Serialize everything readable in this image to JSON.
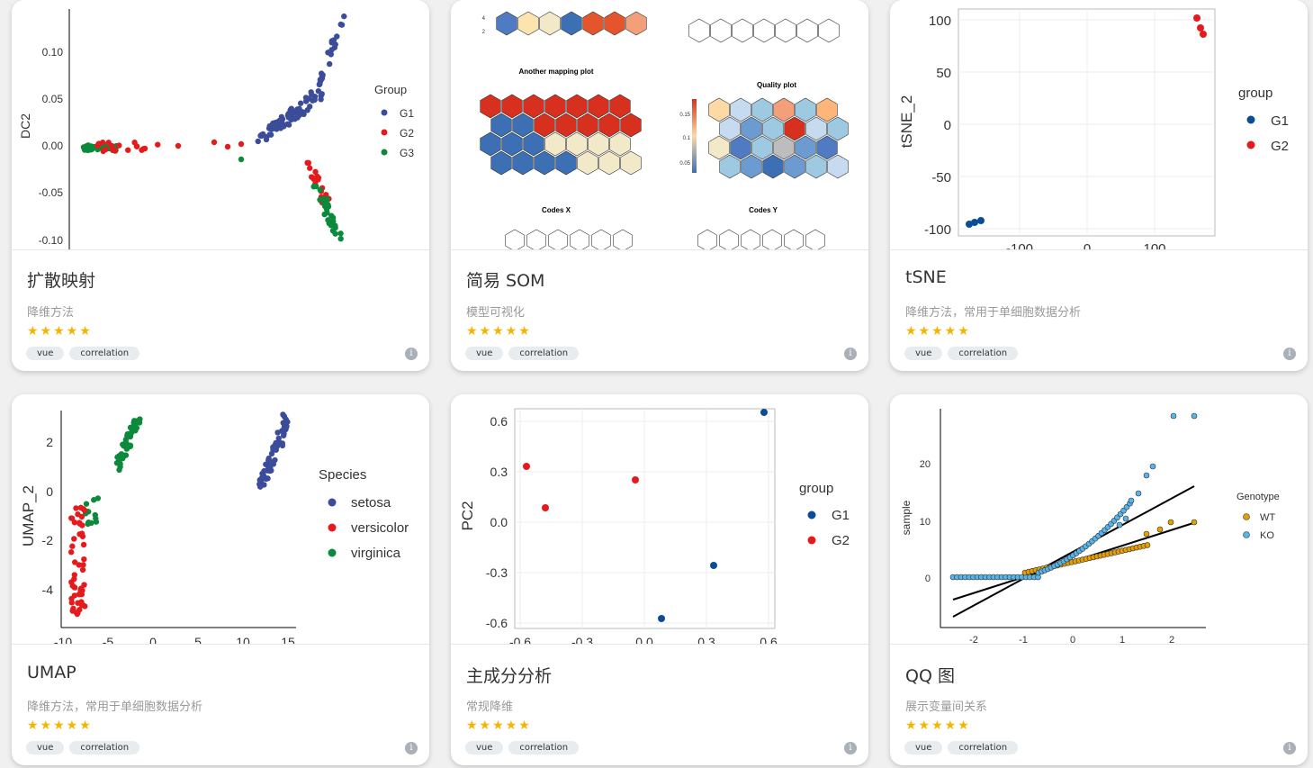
{
  "cards": [
    {
      "title": "扩散映射",
      "desc": "降维方法",
      "stars": "★★★★★",
      "tags": [
        "vue",
        "correlation"
      ],
      "info": "i",
      "plot": {
        "ylabel": "DC2",
        "yticks": [
          "0.10",
          "0.05",
          "0.00",
          "-0.05",
          "-0.10"
        ],
        "legend_title": "Group",
        "legend": [
          "G1",
          "G2",
          "G3"
        ]
      }
    },
    {
      "title": "简易 SOM",
      "desc": "模型可视化",
      "stars": "★★★★★",
      "tags": [
        "vue",
        "correlation"
      ],
      "info": "i",
      "plot": {
        "labels": [
          "Another mapping plot",
          "Quality plot",
          "Codes X",
          "Codes Y"
        ],
        "scale_ticks": [
          "0.15",
          "0.1",
          "0.05"
        ],
        "top_ticks": [
          "4",
          "2"
        ]
      }
    },
    {
      "title": "tSNE",
      "desc": "降维方法，常用于单细胞数据分析",
      "stars": "★★★★★",
      "tags": [
        "vue",
        "correlation"
      ],
      "info": "i",
      "plot": {
        "ylabel": "tSNE_2",
        "yticks": [
          "100",
          "50",
          "0",
          "-50",
          "-100"
        ],
        "xticks": [
          "-100",
          "0",
          "100"
        ],
        "legend_title": "group",
        "legend": [
          "G1",
          "G2"
        ]
      }
    },
    {
      "title": "UMAP",
      "desc": "降维方法，常用于单细胞数据分析",
      "stars": "★★★★★",
      "tags": [
        "vue",
        "correlation"
      ],
      "info": "i",
      "plot": {
        "ylabel": "UMAP_2",
        "yticks": [
          "2",
          "0",
          "-2",
          "-4"
        ],
        "xticks": [
          "-10",
          "-5",
          "0",
          "5",
          "10",
          "15"
        ],
        "legend_title": "Species",
        "legend": [
          "setosa",
          "versicolor",
          "virginica"
        ]
      }
    },
    {
      "title": "主成分分析",
      "desc": "常规降维",
      "stars": "★★★★★",
      "tags": [
        "vue",
        "correlation"
      ],
      "info": "i",
      "plot": {
        "ylabel": "PC2",
        "yticks": [
          "0.6",
          "0.3",
          "0.0",
          "-0.3",
          "-0.6"
        ],
        "xticks": [
          "-0.6",
          "-0.3",
          "0.0",
          "0.3",
          "0.6"
        ],
        "legend_title": "group",
        "legend": [
          "G1",
          "G2"
        ]
      }
    },
    {
      "title": "QQ 图",
      "desc": "展示变量间关系",
      "stars": "★★★★★",
      "tags": [
        "vue",
        "correlation"
      ],
      "info": "i",
      "plot": {
        "ylabel": "sample",
        "yticks": [
          "20",
          "10",
          "0"
        ],
        "xticks": [
          "-2",
          "-1",
          "0",
          "1",
          "2"
        ],
        "legend_title": "Genotype",
        "legend": [
          "WT",
          "KO"
        ]
      }
    }
  ],
  "colors": {
    "blue": "#3b4c9b",
    "red": "#e41a1c",
    "green": "#0a8a3a",
    "navy": "#0b4c99",
    "orange": "#e69f00",
    "lightblue": "#56b4e9"
  }
}
